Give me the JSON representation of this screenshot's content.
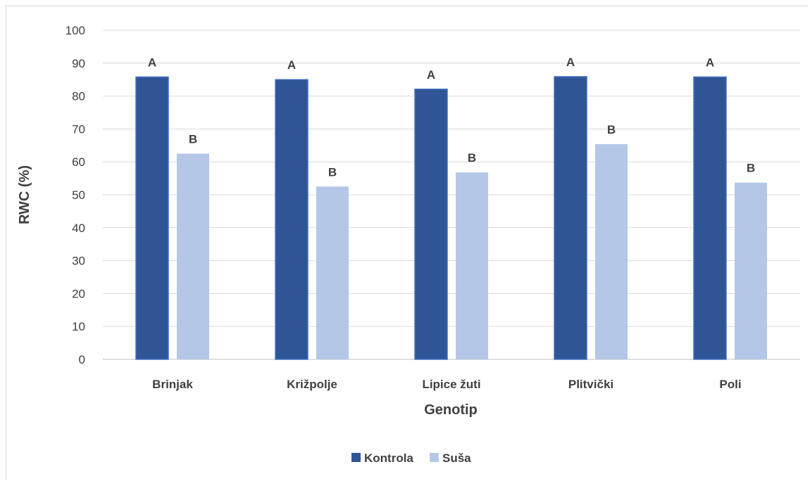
{
  "chart_data": {
    "type": "bar",
    "categories": [
      "Brinjak",
      "Križpolje",
      "Lipice žuti",
      "Plitvički",
      "Poli"
    ],
    "series": [
      {
        "name": "Kontrola",
        "values": [
          85.8,
          85.0,
          82.1,
          85.9,
          85.8
        ],
        "labels": [
          "A",
          "A",
          "A",
          "A",
          "A"
        ],
        "color": "#2f5597"
      },
      {
        "name": "Suša",
        "values": [
          62.5,
          52.5,
          56.8,
          65.4,
          53.7
        ],
        "labels": [
          "B",
          "B",
          "B",
          "B",
          "B"
        ],
        "color": "#b4c7e7"
      }
    ],
    "xlabel": "Genotip",
    "ylabel": "RWC (%)",
    "ylim": [
      0,
      100
    ],
    "yticks": [
      0,
      10,
      20,
      30,
      40,
      50,
      60,
      70,
      80,
      90,
      100
    ],
    "grid": true,
    "legend": "bottom"
  }
}
